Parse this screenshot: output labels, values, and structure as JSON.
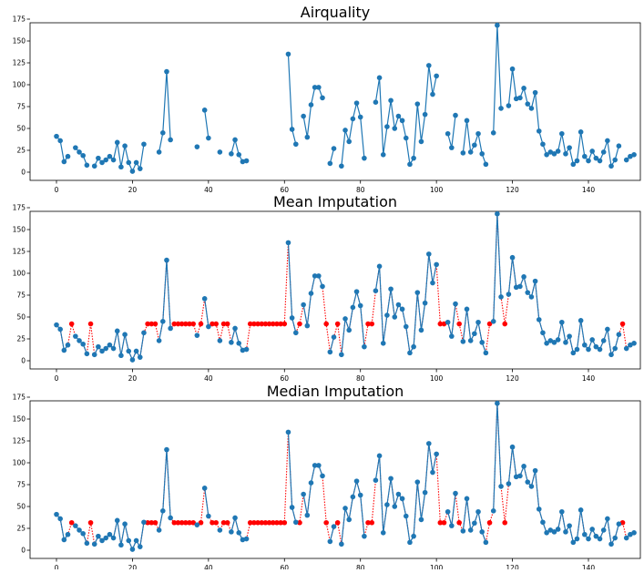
{
  "chart_data": [
    {
      "type": "line",
      "title": "Airquality",
      "xlabel": "",
      "ylabel": "",
      "xlim": [
        -8,
        159
      ],
      "ylim": [
        -8,
        176
      ],
      "xticks": [
        0,
        20,
        40,
        60,
        80,
        100,
        120,
        140
      ],
      "yticks": [
        0,
        25,
        50,
        75,
        100,
        125,
        150,
        175
      ],
      "grid": false,
      "series": [
        {
          "color": "#1f77b4",
          "marker": "circle",
          "line": "solid",
          "values": [
            41,
            36,
            12,
            18,
            null,
            28,
            23,
            19,
            8,
            null,
            7,
            16,
            11,
            14,
            18,
            14,
            34,
            6,
            30,
            11,
            1,
            11,
            4,
            32,
            null,
            null,
            null,
            23,
            45,
            115,
            37,
            null,
            null,
            null,
            null,
            null,
            null,
            29,
            null,
            71,
            39,
            null,
            null,
            23,
            null,
            null,
            21,
            37,
            20,
            12,
            13,
            null,
            null,
            null,
            null,
            null,
            null,
            null,
            null,
            null,
            null,
            135,
            49,
            32,
            null,
            64,
            40,
            77,
            97,
            97,
            85,
            null,
            10,
            27,
            null,
            7,
            48,
            35,
            61,
            79,
            63,
            16,
            null,
            null,
            80,
            108,
            20,
            52,
            82,
            50,
            64,
            59,
            39,
            9,
            16,
            78,
            35,
            66,
            122,
            89,
            110,
            null,
            null,
            44,
            28,
            65,
            null,
            22,
            59,
            23,
            31,
            44,
            21,
            9,
            null,
            45,
            168,
            73,
            null,
            76,
            118,
            84,
            85,
            96,
            78,
            73,
            91,
            47,
            32,
            20,
            23,
            21,
            24,
            44,
            21,
            28,
            9,
            13,
            46,
            18,
            13,
            24,
            16,
            13,
            23,
            36,
            7,
            14,
            30,
            null,
            14,
            18,
            20
          ]
        }
      ]
    },
    {
      "type": "line",
      "title": "Mean Imputation",
      "xticks": [
        0,
        20,
        40,
        60,
        80,
        100,
        120,
        140
      ],
      "yticks": [
        0,
        25,
        50,
        75,
        100,
        125,
        150,
        175
      ],
      "imputed_value": 42.13,
      "imputed_color": "#ff0000",
      "observed_color": "#1f77b4"
    },
    {
      "type": "line",
      "title": "Median Imputation",
      "xticks": [
        0,
        20,
        40,
        60,
        80,
        100,
        120,
        140
      ],
      "yticks": [
        0,
        25,
        50,
        75,
        100,
        125,
        150,
        175
      ],
      "imputed_value": 31.5,
      "imputed_color": "#ff0000",
      "observed_color": "#1f77b4"
    }
  ]
}
